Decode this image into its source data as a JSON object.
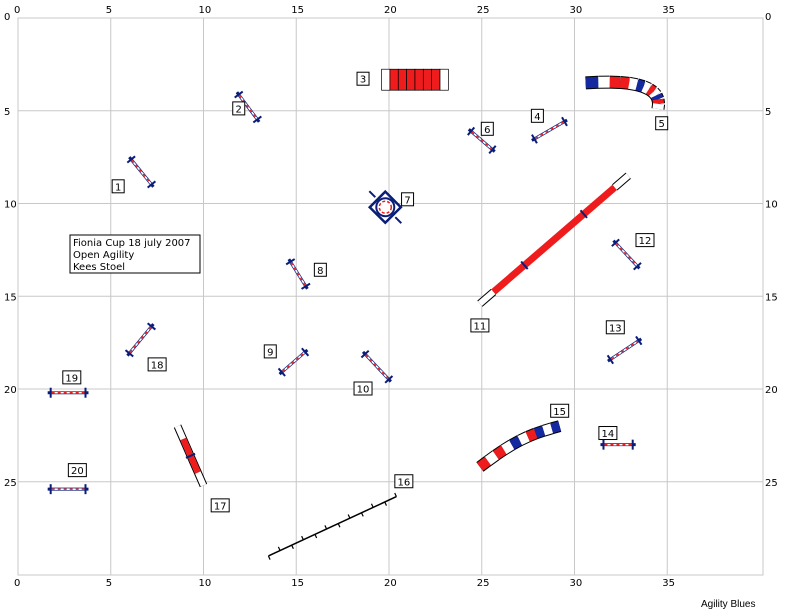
{
  "course": {
    "axis": {
      "x_ticks": [
        "0",
        "5",
        "10",
        "15",
        "20",
        "25",
        "30",
        "35"
      ],
      "y_ticks": [
        "0",
        "5",
        "10",
        "15",
        "20",
        "25"
      ],
      "x_range": [
        0,
        40
      ],
      "y_range": [
        0,
        30
      ]
    },
    "info": {
      "line1": "Fionia Cup 18 july 2007",
      "line2": "Open Agility",
      "line3": "Kees Stoel"
    },
    "footer": "Agility Blues",
    "colors": {
      "grid": "#c8c8c8",
      "red": "#ee1c1c",
      "blue": "#1428a0",
      "dark_blue": "#0a1e78",
      "black": "#000000",
      "white": "#ffffff"
    },
    "obstacles": [
      {
        "num": "1",
        "type": "hurdle",
        "label_pos": [
          5.4,
          9.1
        ],
        "a": [
          6.0,
          7.5
        ],
        "b": [
          7.3,
          9.1
        ]
      },
      {
        "num": "2",
        "type": "hurdle",
        "label_pos": [
          11.9,
          4.9
        ],
        "a": [
          11.8,
          4.0
        ],
        "b": [
          13.0,
          5.6
        ]
      },
      {
        "num": "3",
        "type": "tunnel_box",
        "label_pos": [
          18.6,
          3.3
        ],
        "a": [
          19.6,
          3.3
        ],
        "b": [
          23.2,
          3.3
        ]
      },
      {
        "num": "4",
        "type": "hurdle",
        "label_pos": [
          28.0,
          5.3
        ],
        "a": [
          27.7,
          6.6
        ],
        "b": [
          29.6,
          5.5
        ]
      },
      {
        "num": "5",
        "type": "tunnel_curve",
        "label_pos": [
          34.7,
          5.7
        ]
      },
      {
        "num": "6",
        "type": "hurdle",
        "label_pos": [
          25.3,
          6.0
        ],
        "a": [
          24.3,
          6.0
        ],
        "b": [
          25.7,
          7.2
        ]
      },
      {
        "num": "7",
        "type": "tire",
        "label_pos": [
          21.0,
          9.8
        ],
        "a": [
          19.8,
          10.2
        ]
      },
      {
        "num": "8",
        "type": "hurdle",
        "label_pos": [
          16.3,
          13.6
        ],
        "a": [
          14.6,
          13.0
        ],
        "b": [
          15.6,
          14.6
        ]
      },
      {
        "num": "9",
        "type": "hurdle",
        "label_pos": [
          13.6,
          18.0
        ],
        "a": [
          14.1,
          19.2
        ],
        "b": [
          15.6,
          17.9
        ]
      },
      {
        "num": "10",
        "type": "hurdle",
        "label_pos": [
          18.6,
          20.0
        ],
        "a": [
          18.6,
          18.0
        ],
        "b": [
          20.1,
          19.6
        ]
      },
      {
        "num": "11",
        "type": "dogwalk",
        "label_pos": [
          24.9,
          16.6
        ],
        "a": [
          24.9,
          15.4
        ],
        "b": [
          32.9,
          8.5
        ]
      },
      {
        "num": "12",
        "type": "hurdle",
        "label_pos": [
          33.8,
          12.0
        ],
        "a": [
          32.1,
          12.0
        ],
        "b": [
          33.5,
          13.5
        ]
      },
      {
        "num": "13",
        "type": "hurdle",
        "label_pos": [
          32.2,
          16.7
        ],
        "a": [
          31.8,
          18.5
        ],
        "b": [
          33.6,
          17.3
        ]
      },
      {
        "num": "14",
        "type": "hurdle",
        "label_pos": [
          31.8,
          22.4
        ],
        "a": [
          31.4,
          23.0
        ],
        "b": [
          33.3,
          23.0
        ]
      },
      {
        "num": "15",
        "type": "tunnel_straight",
        "label_pos": [
          29.2,
          21.2
        ],
        "a": [
          24.9,
          24.2
        ],
        "b": [
          29.2,
          22.0
        ]
      },
      {
        "num": "16",
        "type": "ladder",
        "label_pos": [
          20.8,
          25.0
        ],
        "a": [
          13.5,
          29.0
        ],
        "b": [
          20.4,
          25.8
        ]
      },
      {
        "num": "17",
        "type": "seesaw",
        "label_pos": [
          10.9,
          26.3
        ],
        "a": [
          8.6,
          22.0
        ],
        "b": [
          10.0,
          25.2
        ]
      },
      {
        "num": "18",
        "type": "hurdle",
        "label_pos": [
          7.5,
          18.7
        ],
        "a": [
          5.9,
          18.2
        ],
        "b": [
          7.3,
          16.5
        ]
      },
      {
        "num": "19",
        "type": "hurdle",
        "label_pos": [
          2.9,
          19.4
        ],
        "a": [
          1.6,
          20.2
        ],
        "b": [
          3.8,
          20.2
        ]
      },
      {
        "num": "20",
        "type": "hurdle",
        "label_pos": [
          3.2,
          24.4
        ],
        "a": [
          1.6,
          25.4
        ],
        "b": [
          3.8,
          25.4
        ]
      }
    ]
  }
}
